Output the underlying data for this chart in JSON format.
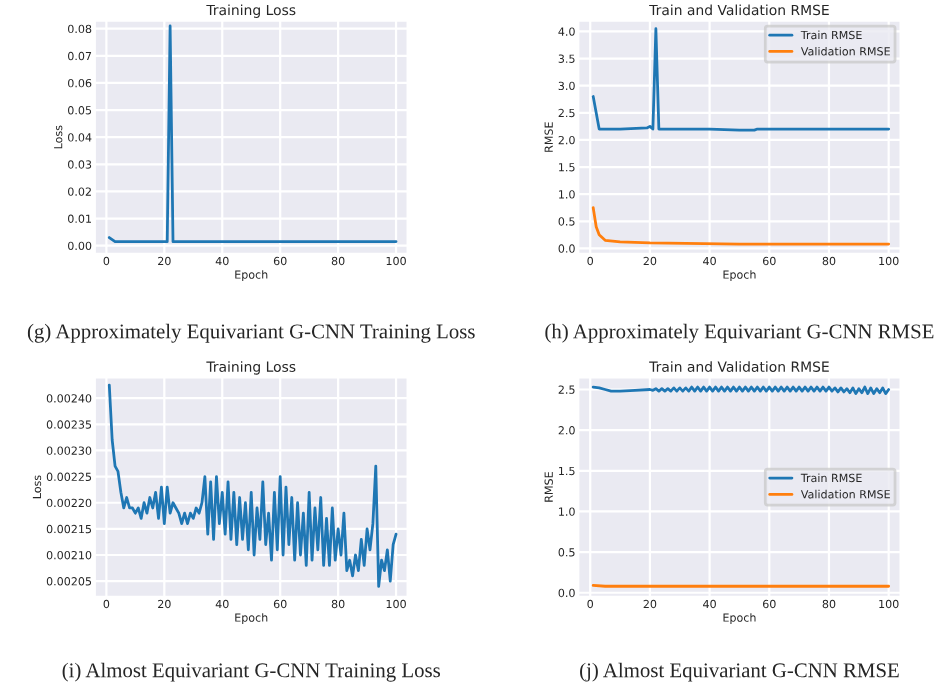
{
  "chart_data": [
    {
      "type": "line",
      "title": "Training Loss",
      "xlabel": "Epoch",
      "ylabel": "Loss",
      "annotations": [
        "(g) Approximately Equivariant G-CNN Training Loss"
      ],
      "xlim": [
        -4,
        104
      ],
      "xticks": [
        0,
        20,
        40,
        60,
        80,
        100
      ],
      "ylim": [
        -0.003,
        0.083
      ],
      "yticks": [
        {
          "value": 0,
          "label": "0.00"
        },
        {
          "value": 0.01,
          "label": "0.01"
        },
        {
          "value": 0.02,
          "label": "0.02"
        },
        {
          "value": 0.03,
          "label": "0.03"
        },
        {
          "value": 0.04,
          "label": "0.04"
        },
        {
          "value": 0.05,
          "label": "0.05"
        },
        {
          "value": 0.06,
          "label": "0.06"
        },
        {
          "value": 0.07,
          "label": "0.07"
        },
        {
          "value": 0.08,
          "label": "0.08"
        }
      ],
      "grid": true,
      "series": [
        {
          "color": "#1f77b4",
          "x": [
            1,
            3,
            10,
            21,
            22,
            23,
            50,
            100
          ],
          "values": [
            0.003,
            0.0015,
            0.0015,
            0.0015,
            0.081,
            0.0015,
            0.0015,
            0.0015
          ]
        }
      ]
    },
    {
      "type": "line",
      "title": "Train and Validation RMSE",
      "xlabel": "Epoch",
      "ylabel": "RMSE",
      "annotations": [
        "(h) Approximately Equivariant G-CNN RMSE"
      ],
      "xlim": [
        -4,
        104
      ],
      "xticks": [
        0,
        20,
        40,
        60,
        80,
        100
      ],
      "ylim": [
        -0.1,
        4.2
      ],
      "yticks": [
        {
          "value": 0,
          "label": "0.0"
        },
        {
          "value": 0.5,
          "label": "0.5"
        },
        {
          "value": 1,
          "label": "1.0"
        },
        {
          "value": 1.5,
          "label": "1.5"
        },
        {
          "value": 2,
          "label": "2.0"
        },
        {
          "value": 2.5,
          "label": "2.5"
        },
        {
          "value": 3,
          "label": "3.0"
        },
        {
          "value": 3.5,
          "label": "3.5"
        },
        {
          "value": 4,
          "label": "4.0"
        }
      ],
      "grid": true,
      "legend": "top right",
      "series": [
        {
          "name": "Train RMSE",
          "color": "#1f77b4",
          "x": [
            1,
            3,
            10,
            19,
            20,
            21,
            22,
            23,
            40,
            50,
            55,
            56,
            100
          ],
          "values": [
            2.8,
            2.2,
            2.2,
            2.22,
            2.25,
            2.2,
            4.05,
            2.2,
            2.2,
            2.18,
            2.18,
            2.2,
            2.2
          ]
        },
        {
          "name": "Validation RMSE",
          "color": "#ff7f0e",
          "x": [
            1,
            2,
            3,
            5,
            10,
            20,
            50,
            100
          ],
          "values": [
            0.75,
            0.4,
            0.25,
            0.15,
            0.12,
            0.1,
            0.08,
            0.08
          ]
        }
      ]
    },
    {
      "type": "line",
      "title": "Training Loss",
      "xlabel": "Epoch",
      "ylabel": "Loss",
      "annotations": [
        "(i) Almost Equivariant G-CNN Training Loss"
      ],
      "xlim": [
        -4,
        104
      ],
      "xticks": [
        0,
        20,
        40,
        60,
        80,
        100
      ],
      "ylim": [
        0.00202,
        0.00244
      ],
      "yticks": [
        0.00205,
        {
          "value": 0.0021,
          "label": "0.00210"
        },
        0.00215,
        {
          "value": 0.0022,
          "label": "0.00220"
        },
        0.00225,
        {
          "value": 0.0023,
          "label": "0.00230"
        },
        0.00235,
        {
          "value": 0.0024,
          "label": "0.00240"
        }
      ],
      "grid": true,
      "series": [
        {
          "color": "#1f77b4",
          "x": [
            1,
            2,
            3,
            4,
            5,
            6,
            7,
            8,
            9,
            10,
            11,
            12,
            13,
            14,
            15,
            16,
            17,
            18,
            19,
            20,
            21,
            22,
            23,
            24,
            25,
            26,
            27,
            28,
            29,
            30,
            31,
            32,
            33,
            34,
            35,
            36,
            37,
            38,
            39,
            40,
            41,
            42,
            43,
            44,
            45,
            46,
            47,
            48,
            49,
            50,
            51,
            52,
            53,
            54,
            55,
            56,
            57,
            58,
            59,
            60,
            61,
            62,
            63,
            64,
            65,
            66,
            67,
            68,
            69,
            70,
            71,
            72,
            73,
            74,
            75,
            76,
            77,
            78,
            79,
            80,
            81,
            82,
            83,
            84,
            85,
            86,
            87,
            88,
            89,
            90,
            91,
            92,
            93,
            94,
            95,
            96,
            97,
            98,
            99,
            100
          ],
          "values": [
            0.002425,
            0.00232,
            0.00227,
            0.00226,
            0.00222,
            0.00219,
            0.00221,
            0.00219,
            0.00219,
            0.00218,
            0.00219,
            0.00217,
            0.0022,
            0.00218,
            0.00221,
            0.00219,
            0.00222,
            0.00217,
            0.00223,
            0.00216,
            0.00223,
            0.00218,
            0.0022,
            0.00219,
            0.00218,
            0.00216,
            0.00218,
            0.00216,
            0.00218,
            0.00217,
            0.00219,
            0.00218,
            0.0022,
            0.00225,
            0.00214,
            0.00224,
            0.00213,
            0.00225,
            0.00216,
            0.00222,
            0.00214,
            0.00224,
            0.00213,
            0.00222,
            0.00212,
            0.00221,
            0.00213,
            0.0022,
            0.00211,
            0.00222,
            0.0021,
            0.00219,
            0.00213,
            0.00224,
            0.00212,
            0.00218,
            0.00209,
            0.00222,
            0.00211,
            0.00225,
            0.0021,
            0.00223,
            0.00212,
            0.00221,
            0.00209,
            0.0022,
            0.0021,
            0.00218,
            0.00208,
            0.00222,
            0.00209,
            0.00219,
            0.00211,
            0.00221,
            0.00208,
            0.00217,
            0.00208,
            0.00219,
            0.00209,
            0.00215,
            0.0021,
            0.00218,
            0.00207,
            0.00209,
            0.00206,
            0.0021,
            0.00207,
            0.00213,
            0.00208,
            0.00215,
            0.00211,
            0.00216,
            0.00227,
            0.00204,
            0.00209,
            0.00207,
            0.00211,
            0.00205,
            0.00212,
            0.00214
          ]
        }
      ]
    },
    {
      "type": "line",
      "title": "Train and Validation RMSE",
      "xlabel": "Epoch",
      "ylabel": "RMSE",
      "annotations": [
        "(j) Almost Equivariant G-CNN RMSE"
      ],
      "xlim": [
        -4,
        104
      ],
      "xticks": [
        0,
        20,
        40,
        60,
        80,
        100
      ],
      "ylim": [
        -0.05,
        2.65
      ],
      "yticks": [
        {
          "value": 0,
          "label": "0.0"
        },
        {
          "value": 0.5,
          "label": "0.5"
        },
        {
          "value": 1,
          "label": "1.0"
        },
        {
          "value": 1.5,
          "label": "1.5"
        },
        {
          "value": 2,
          "label": "2.0"
        },
        {
          "value": 2.5,
          "label": "2.5"
        }
      ],
      "grid": true,
      "legend": "right",
      "series": [
        {
          "name": "Train RMSE",
          "color": "#1f77b4",
          "x": [
            1,
            3,
            5,
            7,
            10,
            15,
            20,
            21,
            22,
            23,
            24,
            25,
            26,
            27,
            28,
            29,
            30,
            31,
            32,
            33,
            34,
            35,
            36,
            37,
            38,
            39,
            40,
            41,
            42,
            43,
            44,
            45,
            46,
            47,
            48,
            49,
            50,
            51,
            52,
            53,
            54,
            55,
            56,
            57,
            58,
            59,
            60,
            61,
            62,
            63,
            64,
            65,
            66,
            67,
            68,
            69,
            70,
            71,
            72,
            73,
            74,
            75,
            76,
            77,
            78,
            79,
            80,
            81,
            82,
            83,
            84,
            85,
            86,
            87,
            88,
            89,
            90,
            91,
            92,
            93,
            94,
            95,
            96,
            97,
            98,
            99,
            100
          ],
          "values": [
            2.53,
            2.52,
            2.5,
            2.48,
            2.48,
            2.49,
            2.5,
            2.49,
            2.51,
            2.48,
            2.51,
            2.48,
            2.51,
            2.48,
            2.52,
            2.48,
            2.52,
            2.48,
            2.52,
            2.48,
            2.53,
            2.48,
            2.53,
            2.48,
            2.53,
            2.48,
            2.53,
            2.48,
            2.53,
            2.48,
            2.53,
            2.48,
            2.53,
            2.48,
            2.53,
            2.48,
            2.53,
            2.48,
            2.53,
            2.48,
            2.53,
            2.48,
            2.53,
            2.48,
            2.53,
            2.48,
            2.53,
            2.48,
            2.53,
            2.48,
            2.53,
            2.48,
            2.53,
            2.48,
            2.53,
            2.48,
            2.53,
            2.48,
            2.53,
            2.48,
            2.53,
            2.48,
            2.53,
            2.48,
            2.53,
            2.48,
            2.53,
            2.48,
            2.52,
            2.47,
            2.52,
            2.47,
            2.51,
            2.46,
            2.52,
            2.45,
            2.51,
            2.46,
            2.53,
            2.45,
            2.52,
            2.45,
            2.51,
            2.46,
            2.52,
            2.45,
            2.5
          ]
        },
        {
          "name": "Validation RMSE",
          "color": "#ff7f0e",
          "x": [
            1,
            5,
            50,
            100
          ],
          "values": [
            0.09,
            0.08,
            0.08,
            0.08
          ]
        }
      ]
    }
  ]
}
